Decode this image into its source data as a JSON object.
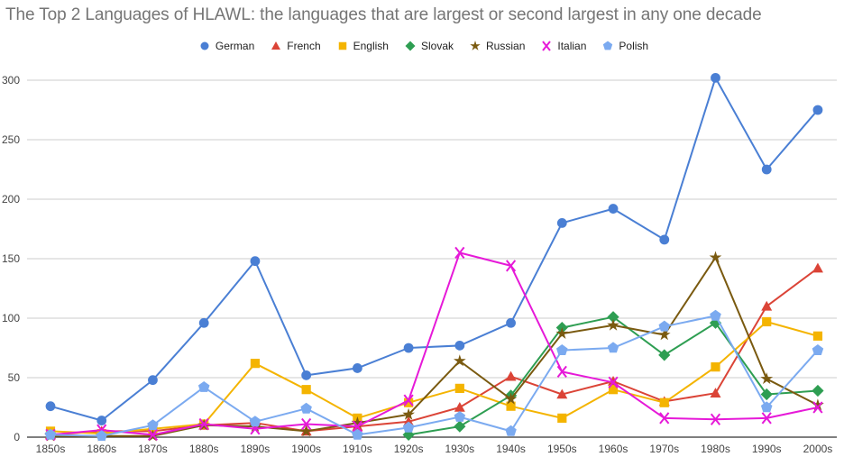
{
  "chart_data": {
    "type": "line",
    "title": "The Top 2 Languages of HLAWL: the languages that are largest or second largest in any one decade",
    "xlabel": "",
    "ylabel": "",
    "ylim": [
      0,
      300
    ],
    "yticks": [
      0,
      50,
      100,
      150,
      200,
      250,
      300
    ],
    "grid": true,
    "legend_position": "top",
    "categories": [
      "1850s",
      "1860s",
      "1870s",
      "1880s",
      "1890s",
      "1900s",
      "1910s",
      "1920s",
      "1930s",
      "1940s",
      "1950s",
      "1960s",
      "1970s",
      "1980s",
      "1990s",
      "2000s"
    ],
    "series": [
      {
        "name": "German",
        "color": "#4a7fd4",
        "marker": "circle",
        "values": [
          26,
          14,
          48,
          96,
          148,
          52,
          58,
          75,
          77,
          96,
          180,
          192,
          166,
          302,
          225,
          275
        ]
      },
      {
        "name": "French",
        "color": "#db4437",
        "marker": "triangle",
        "values": [
          2,
          5,
          5,
          10,
          12,
          5,
          9,
          13,
          25,
          51,
          36,
          47,
          30,
          37,
          110,
          142
        ]
      },
      {
        "name": "English",
        "color": "#f4b400",
        "marker": "square",
        "values": [
          5,
          3,
          7,
          11,
          62,
          40,
          16,
          29,
          41,
          26,
          16,
          40,
          29,
          59,
          97,
          85
        ]
      },
      {
        "name": "Slovak",
        "color": "#2e9e52",
        "marker": "diamond",
        "values": [
          null,
          null,
          null,
          null,
          null,
          null,
          null,
          2,
          9,
          35,
          92,
          101,
          69,
          96,
          36,
          39
        ]
      },
      {
        "name": "Russian",
        "color": "#7a5a10",
        "marker": "star",
        "values": [
          1,
          1,
          1,
          10,
          9,
          5,
          12,
          19,
          64,
          32,
          87,
          94,
          86,
          151,
          49,
          27
        ]
      },
      {
        "name": "Italian",
        "color": "#e619d8",
        "marker": "x",
        "values": [
          2,
          6,
          2,
          11,
          7,
          11,
          9,
          31,
          155,
          144,
          55,
          46,
          16,
          15,
          16,
          25
        ]
      },
      {
        "name": "Polish",
        "color": "#7baaf0",
        "marker": "pentagon",
        "values": [
          2,
          1,
          10,
          42,
          13,
          24,
          2,
          8,
          17,
          5,
          73,
          75,
          93,
          102,
          25,
          73
        ]
      }
    ]
  }
}
